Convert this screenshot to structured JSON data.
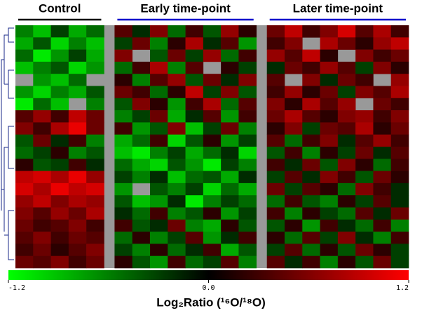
{
  "chart_data": {
    "type": "heatmap",
    "groups": [
      {
        "name": "Control",
        "color": "#000000",
        "columns": 5
      },
      {
        "name": "Early time-point",
        "color": "#0000cc",
        "columns": 8
      },
      {
        "name": "Later time-point",
        "color": "#0000cc",
        "columns": 8
      }
    ],
    "values": [
      [
        -0.6,
        -0.9,
        -0.3,
        -0.8,
        -0.5,
        0.4,
        -0.2,
        0.6,
        -0.5,
        0.3,
        -0.4,
        0.7,
        0.2,
        0.5,
        0.9,
        0.3,
        0.6,
        1.0,
        0.4,
        0.8,
        0.3
      ],
      [
        -0.8,
        -0.4,
        -1.0,
        -0.6,
        -0.9,
        -0.3,
        0.5,
        -0.6,
        0.2,
        0.8,
        -0.2,
        0.4,
        -0.7,
        0.3,
        0.6,
        null,
        0.8,
        0.5,
        0.2,
        0.7,
        0.9
      ],
      [
        -0.5,
        -1.1,
        -0.7,
        -0.3,
        -0.8,
        0.6,
        null,
        -0.4,
        0.5,
        -0.3,
        0.7,
        -0.5,
        0.3,
        0.7,
        0.4,
        0.9,
        0.2,
        null,
        0.6,
        0.3,
        0.5
      ],
      [
        -0.9,
        -0.6,
        -0.4,
        -1.0,
        -0.7,
        -0.5,
        0.3,
        0.8,
        -0.6,
        0.4,
        null,
        0.2,
        -0.3,
        -0.2,
        0.5,
        0.3,
        0.7,
        0.4,
        -0.3,
        0.6,
        0.2
      ],
      [
        null,
        -0.7,
        -0.9,
        -0.5,
        null,
        0.2,
        -0.6,
        0.4,
        0.7,
        -0.4,
        0.5,
        -0.2,
        0.6,
        0.4,
        null,
        0.6,
        -0.2,
        0.5,
        0.3,
        null,
        0.7
      ],
      [
        -0.7,
        -1.0,
        -0.6,
        -0.8,
        -0.4,
        0.5,
        0.3,
        -0.5,
        0.2,
        0.9,
        -0.3,
        0.6,
        -0.4,
        0.3,
        0.7,
        0.2,
        0.5,
        -0.3,
        0.6,
        0.4,
        0.8
      ],
      [
        -1.1,
        -0.5,
        -0.9,
        null,
        -0.6,
        -0.4,
        0.6,
        0.2,
        -0.7,
        0.3,
        0.8,
        -0.5,
        0.4,
        0.6,
        0.2,
        0.8,
        0.4,
        0.7,
        null,
        0.5,
        0.3
      ],
      [
        0.4,
        0.7,
        0.3,
        0.9,
        0.5,
        -0.6,
        -0.3,
        0.5,
        -0.8,
        -0.2,
        0.4,
        -0.7,
        0.3,
        0.5,
        0.8,
        0.4,
        0.2,
        0.6,
        0.7,
        0.3,
        0.6
      ],
      [
        0.6,
        0.3,
        0.8,
        1.1,
        0.5,
        0.3,
        -0.7,
        -0.4,
        0.6,
        -0.9,
        -0.3,
        0.5,
        -0.6,
        0.2,
        0.6,
        -0.3,
        0.5,
        0.4,
        0.8,
        0.2,
        0.5
      ],
      [
        -0.4,
        0.5,
        -0.2,
        0.3,
        -0.6,
        -0.8,
        -0.5,
        0.3,
        -1.0,
        -0.4,
        0.2,
        -0.7,
        -0.3,
        0.4,
        -0.5,
        0.3,
        0.6,
        -0.2,
        0.4,
        0.7,
        0.3
      ],
      [
        -0.5,
        -0.3,
        0.2,
        -0.6,
        -0.4,
        -0.9,
        -1.1,
        -0.6,
        -0.3,
        -0.8,
        -0.5,
        -0.2,
        -1.0,
        -0.4,
        0.3,
        -0.6,
        0.2,
        -0.3,
        0.5,
        -0.2,
        0.4
      ],
      [
        0.2,
        -0.4,
        -0.3,
        0.3,
        -0.2,
        -0.5,
        -0.8,
        -1.0,
        -0.4,
        -0.7,
        -1.1,
        -0.3,
        -0.6,
        0.3,
        -0.2,
        0.5,
        -0.4,
        0.6,
        0.2,
        -0.5,
        0.3
      ],
      [
        0.9,
        1.0,
        0.8,
        1.1,
        0.7,
        -0.3,
        -0.6,
        -0.2,
        -0.9,
        -0.5,
        -0.4,
        -0.8,
        -0.2,
        -0.3,
        0.4,
        -0.2,
        0.6,
        0.3,
        -0.4,
        0.5,
        0.2
      ],
      [
        1.0,
        0.8,
        1.1,
        0.9,
        1.0,
        -0.7,
        null,
        -0.4,
        -0.6,
        -0.3,
        -1.0,
        -0.5,
        -0.8,
        0.5,
        -0.3,
        0.4,
        0.2,
        -0.5,
        0.6,
        0.3,
        -0.2
      ],
      [
        0.7,
        0.9,
        0.6,
        0.8,
        0.7,
        -0.4,
        -0.9,
        -0.7,
        -0.2,
        -1.1,
        -0.6,
        -0.3,
        -0.5,
        -0.5,
        0.3,
        -0.4,
        -0.6,
        0.2,
        -0.3,
        0.4,
        -0.2
      ],
      [
        0.6,
        0.4,
        0.7,
        0.5,
        0.8,
        -0.2,
        -0.5,
        0.3,
        -0.6,
        -0.4,
        0.2,
        -0.7,
        -0.3,
        0.3,
        -0.6,
        0.2,
        -0.3,
        -0.5,
        0.4,
        -0.2,
        0.5
      ],
      [
        0.5,
        0.3,
        0.4,
        0.6,
        0.3,
        0.3,
        -0.4,
        -0.2,
        0.5,
        -0.6,
        -0.8,
        0.2,
        -0.4,
        -0.4,
        0.2,
        -0.7,
        0.3,
        -0.2,
        -0.5,
        0.3,
        -0.6
      ],
      [
        0.4,
        0.6,
        0.3,
        0.5,
        0.4,
        -0.5,
        0.2,
        -0.6,
        -0.3,
        0.4,
        -0.7,
        -0.2,
        0.3,
        0.2,
        -0.5,
        0.4,
        -0.3,
        0.6,
        -0.2,
        -0.6,
        0.3
      ],
      [
        0.3,
        0.5,
        0.2,
        0.4,
        0.6,
        -0.3,
        -0.6,
        0.2,
        -0.5,
        -0.2,
        0.3,
        -0.8,
        -0.4,
        -0.3,
        0.4,
        -0.5,
        0.2,
        -0.4,
        0.5,
        0.2,
        -0.3
      ],
      [
        0.5,
        0.4,
        0.6,
        0.3,
        0.5,
        0.2,
        -0.4,
        -0.7,
        0.3,
        -0.5,
        -0.3,
        0.4,
        -0.6,
        0.4,
        -0.2,
        0.3,
        -0.6,
        0.2,
        -0.4,
        0.5,
        -0.3
      ]
    ],
    "zlim": [
      -1.2,
      1.2
    ],
    "zticks": [
      -1.2,
      {
        "value": 0,
        "label": "0.0"
      },
      1.2
    ],
    "low_color": "#00ff00",
    "mid_color": "#000000",
    "high_color": "#ff0000",
    "missing_color": "#999999",
    "colorbar_label": "Log₂Ratio (¹⁶O/¹⁸O)"
  }
}
